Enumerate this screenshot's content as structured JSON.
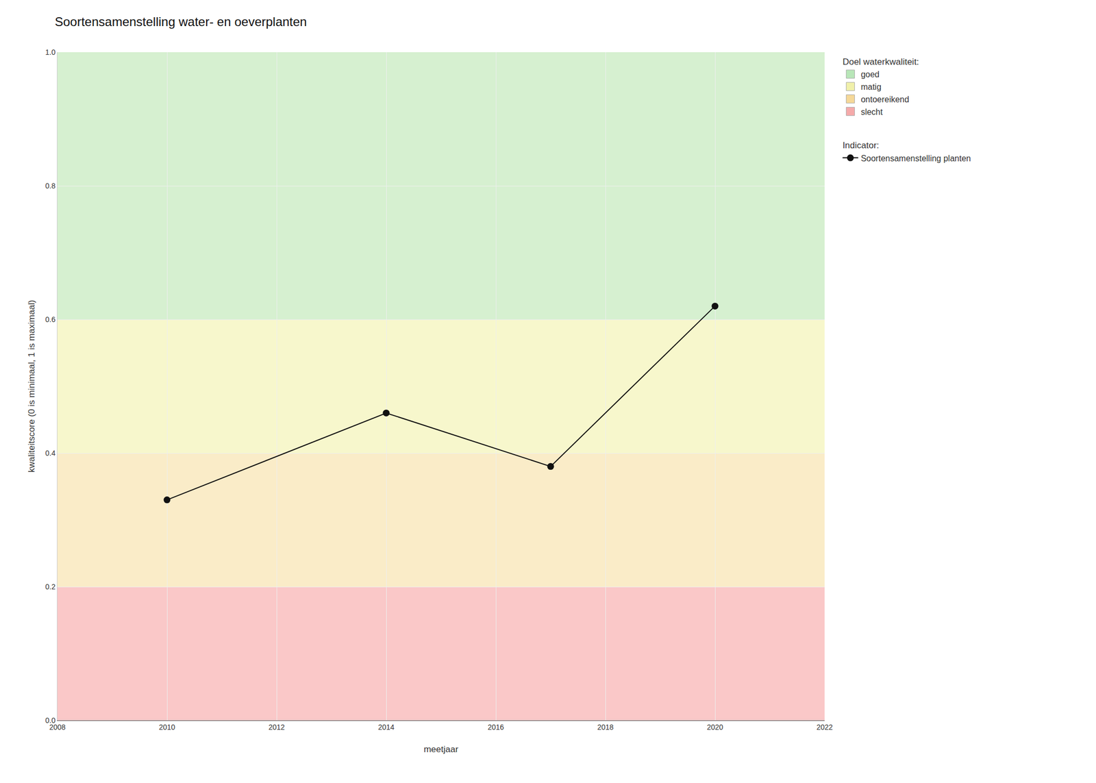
{
  "chart_data": {
    "type": "line",
    "title": "Soortensamenstelling water- en oeverplanten",
    "xlabel": "meetjaar",
    "ylabel": "kwaliteitscore (0 is minimaal, 1 is maximaal)",
    "xlim": [
      2008,
      2022
    ],
    "ylim": [
      0.0,
      1.0
    ],
    "xticks": [
      2008,
      2010,
      2012,
      2014,
      2016,
      2018,
      2020,
      2022
    ],
    "yticks": [
      {
        "value": 0.0,
        "label": "0.0"
      },
      0.2,
      0.4,
      0.6,
      0.8,
      {
        "value": 1.0,
        "label": "1.0"
      }
    ],
    "grid": true,
    "legend": "right",
    "x": [
      2010,
      2014,
      2017,
      2020
    ],
    "series": [
      {
        "name": "Soortensamenstelling planten",
        "legend_title": "Indicator:",
        "color": "#111111",
        "marker": "o",
        "values": [
          0.33,
          0.46,
          0.38,
          0.62
        ]
      }
    ],
    "bands_title": "Doel waterkwaliteit:",
    "bands": [
      {
        "name": "goed",
        "range": [
          0.6,
          1.0
        ],
        "color": "#d6f0d0",
        "legend_color": "#b8e6b8"
      },
      {
        "name": "matig",
        "range": [
          0.4,
          0.6
        ],
        "color": "#f7f7cc",
        "legend_color": "#f0f0aa"
      },
      {
        "name": "ontoereikend",
        "range": [
          0.2,
          0.4
        ],
        "color": "#faecc8",
        "legend_color": "#f5d898"
      },
      {
        "name": "slecht",
        "range": [
          0.0,
          0.2
        ],
        "color": "#fac8c8",
        "legend_color": "#f5aaaa"
      }
    ]
  }
}
